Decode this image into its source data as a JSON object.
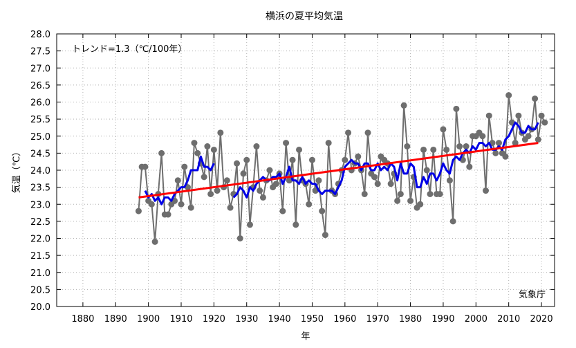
{
  "chart_data": {
    "type": "line",
    "title": "横浜の夏平均気温",
    "xlabel": "年",
    "ylabel": "気温（℃）",
    "annotation": "トレンド=1.3（℃/100年）",
    "source": "気象庁",
    "xlim": [
      1872,
      2024
    ],
    "ylim": [
      20.0,
      28.0
    ],
    "xticks": [
      "1880",
      "1890",
      "1900",
      "1910",
      "1920",
      "1930",
      "1940",
      "1950",
      "1960",
      "1970",
      "1980",
      "1990",
      "2000",
      "2010",
      "2020"
    ],
    "yticks": [
      "20.0",
      "20.5",
      "21.0",
      "21.5",
      "22.0",
      "22.5",
      "23.0",
      "23.5",
      "24.0",
      "24.5",
      "25.0",
      "25.5",
      "26.0",
      "26.5",
      "27.0",
      "27.5",
      "28.0"
    ],
    "grid": true,
    "colors": {
      "annual": "#6e6e6e",
      "moving_average": "#0000e6",
      "trend": "#ff0000"
    },
    "series": [
      {
        "kind": "annual",
        "x": [
          1897,
          1898,
          1899,
          1900,
          1901,
          1902,
          1903,
          1904,
          1905,
          1906,
          1907,
          1908,
          1909,
          1910,
          1911,
          1912,
          1913,
          1914,
          1915,
          1916,
          1917,
          1918,
          1919,
          1920,
          1921,
          1922,
          1923,
          1924,
          1925,
          1926,
          1927,
          1928,
          1929,
          1930,
          1931,
          1932,
          1933,
          1934,
          1935,
          1936,
          1937,
          1938,
          1939,
          1940,
          1941,
          1942,
          1943,
          1944,
          1945,
          1946,
          1947,
          1948,
          1949,
          1950,
          1951,
          1952,
          1953,
          1954,
          1955,
          1956,
          1957,
          1958,
          1959,
          1960,
          1961,
          1962,
          1963,
          1964,
          1965,
          1966,
          1967,
          1968,
          1969,
          1970,
          1971,
          1972,
          1973,
          1974,
          1975,
          1976,
          1977,
          1978,
          1979,
          1980,
          1981,
          1982,
          1983,
          1984,
          1985,
          1986,
          1987,
          1988,
          1989,
          1990,
          1991,
          1992,
          1993,
          1994,
          1995,
          1996,
          1997,
          1998,
          1999,
          2000,
          2001,
          2002,
          2003,
          2004,
          2005,
          2006,
          2007,
          2008,
          2009,
          2010,
          2011,
          2012,
          2013,
          2014,
          2015,
          2016,
          2017,
          2018,
          2019,
          2020,
          2021
        ],
        "values": [
          22.8,
          24.1,
          24.1,
          23.1,
          23.0,
          21.9,
          23.3,
          24.5,
          22.7,
          22.7,
          23.0,
          23.1,
          23.7,
          23.0,
          24.1,
          23.5,
          22.9,
          24.8,
          24.5,
          24.2,
          23.8,
          24.7,
          23.3,
          24.6,
          23.4,
          25.1,
          23.5,
          23.7,
          22.9,
          23.3,
          24.2,
          22.0,
          23.9,
          24.3,
          22.4,
          23.5,
          24.7,
          23.4,
          23.2,
          23.7,
          24.0,
          23.5,
          23.6,
          23.9,
          22.8,
          24.8,
          23.7,
          24.3,
          22.4,
          24.6,
          23.7,
          23.6,
          23.0,
          24.3,
          23.4,
          23.7,
          22.8,
          22.1,
          24.8,
          23.4,
          23.3,
          23.6,
          24.0,
          24.3,
          25.1,
          24.0,
          24.2,
          24.4,
          24.0,
          23.3,
          25.1,
          23.9,
          23.8,
          23.6,
          24.4,
          24.3,
          24.2,
          23.6,
          23.9,
          23.1,
          23.3,
          25.9,
          24.7,
          23.1,
          23.8,
          22.9,
          23.0,
          24.6,
          24.0,
          23.3,
          24.6,
          23.3,
          23.3,
          25.2,
          24.6,
          23.7,
          22.5,
          25.8,
          24.7,
          24.3,
          24.7,
          24.1,
          25.0,
          25.0,
          25.1,
          25.0,
          23.4,
          25.6,
          24.8,
          24.5,
          24.8,
          24.5,
          24.4,
          26.2,
          25.4,
          24.8,
          25.6,
          25.1,
          24.9,
          25.0,
          25.2,
          26.1,
          24.9,
          25.6,
          25.4
        ]
      },
      {
        "kind": "moving_average",
        "x": [
          1899,
          1900,
          1901,
          1902,
          1903,
          1904,
          1905,
          1906,
          1907,
          1908,
          1909,
          1910,
          1911,
          1912,
          1913,
          1914,
          1915,
          1916,
          1917,
          1918,
          1919,
          1920,
          null,
          1926,
          1927,
          1928,
          1929,
          1930,
          1931,
          1932,
          1933,
          1934,
          1935,
          1936,
          1937,
          1938,
          1939,
          1940,
          1941,
          1942,
          1943,
          1944,
          1945,
          1946,
          1947,
          1948,
          1949,
          1950,
          1951,
          1952,
          1953,
          1954,
          1955,
          1956,
          1957,
          1958,
          1959,
          1960,
          1961,
          1962,
          1963,
          1964,
          1965,
          1966,
          1967,
          1968,
          1969,
          1970,
          1971,
          1972,
          1973,
          1974,
          1975,
          1976,
          1977,
          1978,
          1979,
          1980,
          1981,
          1982,
          1983,
          1984,
          1985,
          1986,
          1987,
          1988,
          1989,
          1990,
          1991,
          1992,
          1993,
          1994,
          1995,
          1996,
          1997,
          1998,
          1999,
          2000,
          2001,
          2002,
          2003,
          2004,
          2005,
          2006,
          2007,
          2008,
          2009,
          2010,
          2011,
          2012,
          2013,
          2014,
          2015,
          2016,
          2017,
          2018,
          2019
        ],
        "values": [
          23.4,
          23.2,
          23.3,
          23.1,
          23.2,
          23.0,
          23.2,
          23.2,
          23.1,
          23.3,
          23.4,
          23.5,
          23.5,
          23.7,
          24.0,
          24.0,
          24.0,
          24.4,
          24.1,
          24.1,
          24.0,
          24.2,
          null,
          23.2,
          23.3,
          23.5,
          23.4,
          23.2,
          23.5,
          23.4,
          23.6,
          23.7,
          23.8,
          23.7,
          23.7,
          23.8,
          23.8,
          23.9,
          23.6,
          23.8,
          24.1,
          23.7,
          23.7,
          23.6,
          23.8,
          23.6,
          23.7,
          23.6,
          23.6,
          23.4,
          23.3,
          23.4,
          23.4,
          23.4,
          23.3,
          23.5,
          23.7,
          24.1,
          24.2,
          24.3,
          24.2,
          24.2,
          24.0,
          24.2,
          24.2,
          24.0,
          24.0,
          24.2,
          24.0,
          24.1,
          24.0,
          24.2,
          24.1,
          23.7,
          24.2,
          23.9,
          23.9,
          24.2,
          24.1,
          23.5,
          23.5,
          23.8,
          23.6,
          23.9,
          23.9,
          23.7,
          23.9,
          24.2,
          24.0,
          23.9,
          24.3,
          24.4,
          24.3,
          24.5,
          24.6,
          24.5,
          24.7,
          24.6,
          24.8,
          24.8,
          24.7,
          24.8,
          24.6,
          24.6,
          24.7,
          24.6,
          24.9,
          25.0,
          25.2,
          25.4,
          25.3,
          25.1,
          25.1,
          25.3,
          25.2,
          25.2,
          25.4
        ]
      },
      {
        "kind": "trend",
        "x": [
          1897,
          2019
        ],
        "values": [
          23.2,
          24.8
        ]
      }
    ]
  }
}
